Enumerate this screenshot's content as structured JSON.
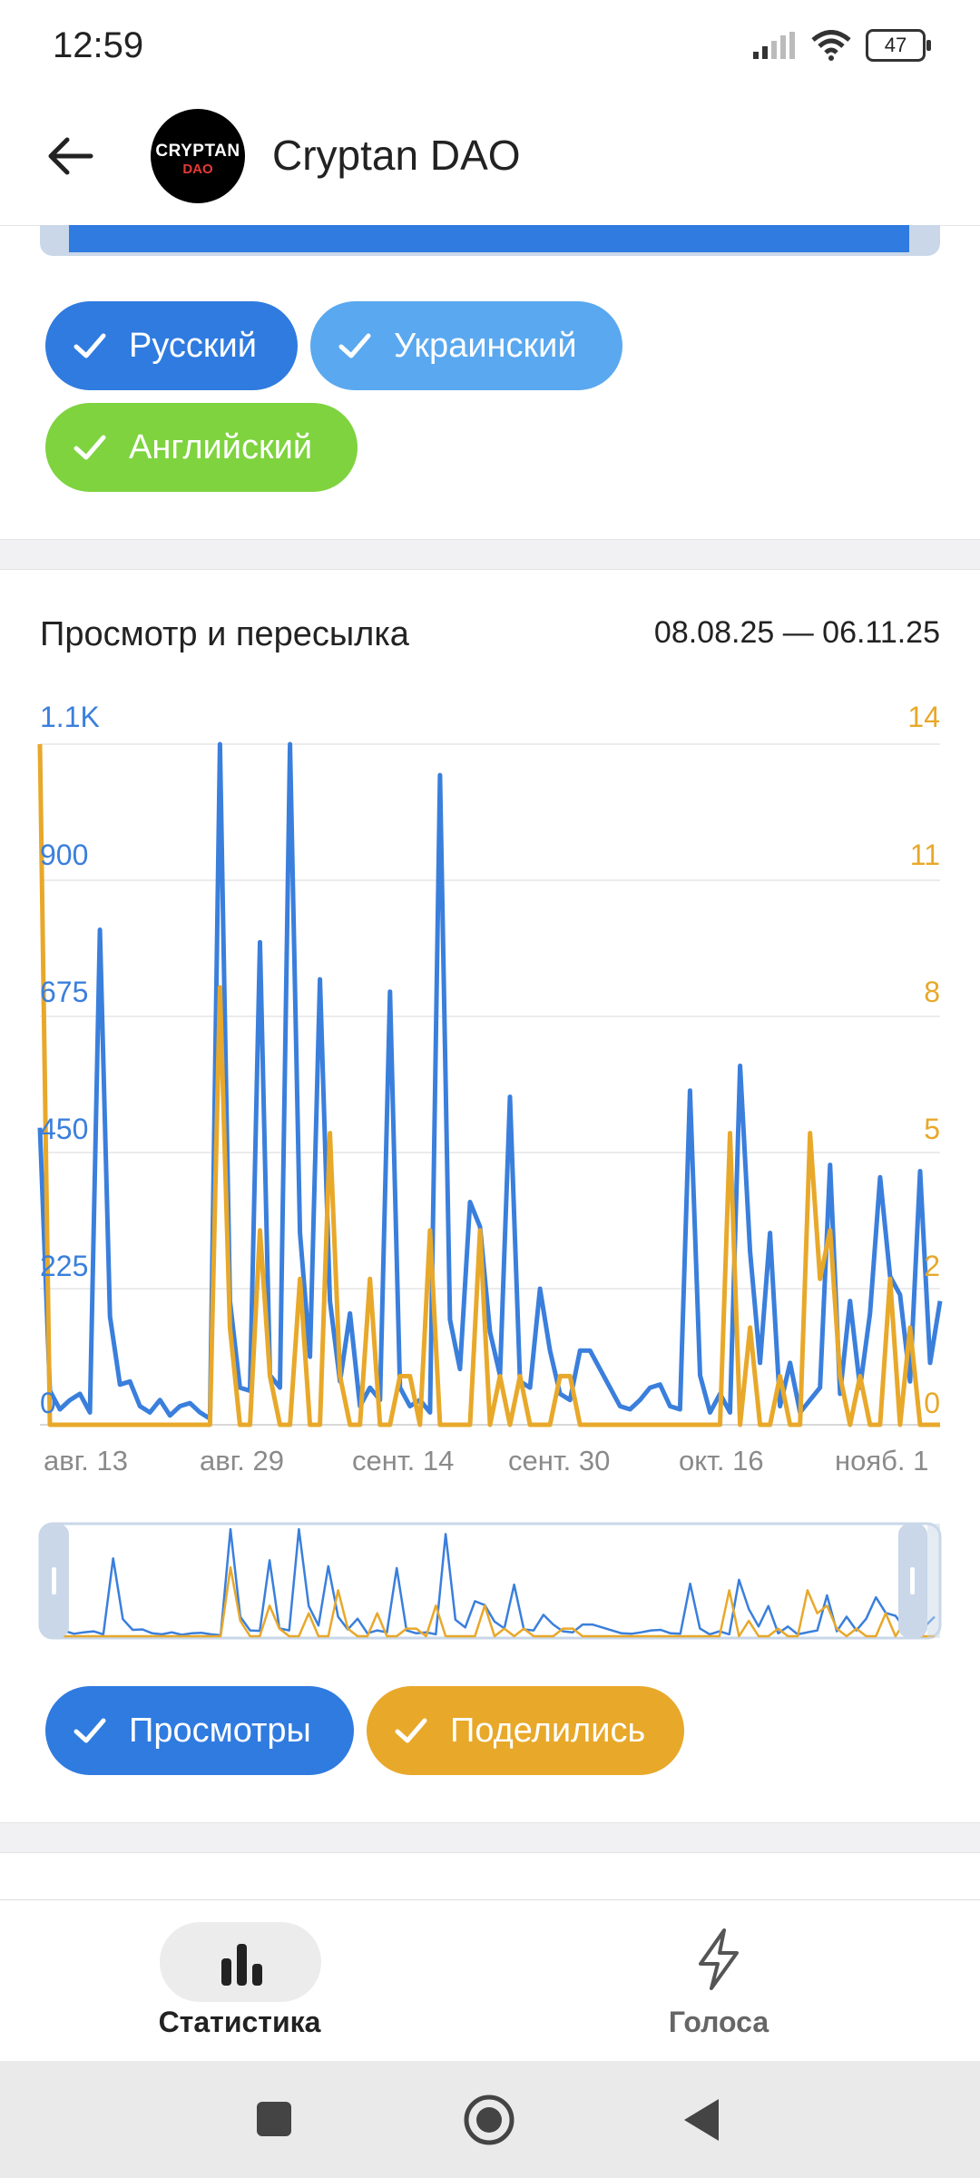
{
  "status": {
    "time": "12:59",
    "battery": "47"
  },
  "appbar": {
    "title": "Cryptan DAO",
    "avatar_line1": "CRYPTAN",
    "avatar_line2": "DAO"
  },
  "languages": {
    "chips": [
      {
        "label": "Русский",
        "color": "#2f7be0"
      },
      {
        "label": "Украинский",
        "color": "#5aa8ef"
      },
      {
        "label": "Английский",
        "color": "#7ed33f"
      }
    ]
  },
  "views_chart": {
    "title": "Просмотр и пересылка",
    "range": "08.08.25 — 06.11.25",
    "left_axis_labels": [
      "1.1K",
      "900",
      "675",
      "450",
      "225",
      "0"
    ],
    "right_axis_labels": [
      "14",
      "11",
      "8",
      "5",
      "2",
      "0"
    ],
    "x_labels": [
      "авг. 13",
      "авг. 29",
      "сент. 14",
      "сент. 30",
      "окт. 16",
      "нояб. 1"
    ],
    "toggle_views": "Просмотры",
    "toggle_shares": "Поделились",
    "colors": {
      "views": "#3a7fdc",
      "shares": "#e8a82a"
    }
  },
  "chart_data": {
    "type": "line",
    "x": [
      "2025-08-08",
      "2025-08-09",
      "2025-08-10",
      "2025-08-11",
      "2025-08-12",
      "2025-08-13",
      "2025-08-14",
      "2025-08-15",
      "2025-08-16",
      "2025-08-17",
      "2025-08-18",
      "2025-08-19",
      "2025-08-20",
      "2025-08-21",
      "2025-08-22",
      "2025-08-23",
      "2025-08-24",
      "2025-08-25",
      "2025-08-26",
      "2025-08-27",
      "2025-08-28",
      "2025-08-29",
      "2025-08-30",
      "2025-08-31",
      "2025-09-01",
      "2025-09-02",
      "2025-09-03",
      "2025-09-04",
      "2025-09-05",
      "2025-09-06",
      "2025-09-07",
      "2025-09-08",
      "2025-09-09",
      "2025-09-10",
      "2025-09-11",
      "2025-09-12",
      "2025-09-13",
      "2025-09-14",
      "2025-09-15",
      "2025-09-16",
      "2025-09-17",
      "2025-09-18",
      "2025-09-19",
      "2025-09-20",
      "2025-09-21",
      "2025-09-22",
      "2025-09-23",
      "2025-09-24",
      "2025-09-25",
      "2025-09-26",
      "2025-09-27",
      "2025-09-28",
      "2025-09-29",
      "2025-09-30",
      "2025-10-01",
      "2025-10-02",
      "2025-10-03",
      "2025-10-04",
      "2025-10-05",
      "2025-10-06",
      "2025-10-07",
      "2025-10-08",
      "2025-10-09",
      "2025-10-10",
      "2025-10-11",
      "2025-10-12",
      "2025-10-13",
      "2025-10-14",
      "2025-10-15",
      "2025-10-16",
      "2025-10-17",
      "2025-10-18",
      "2025-10-19",
      "2025-10-20",
      "2025-10-21",
      "2025-10-22",
      "2025-10-23",
      "2025-10-24",
      "2025-10-25",
      "2025-10-26",
      "2025-10-27",
      "2025-10-28",
      "2025-10-29",
      "2025-10-30",
      "2025-10-31",
      "2025-11-01",
      "2025-11-02",
      "2025-11-03",
      "2025-11-04",
      "2025-11-05",
      "2025-11-06"
    ],
    "series": [
      {
        "name": "Просмотры",
        "axis": "left",
        "values": [
          480,
          55,
          25,
          40,
          50,
          20,
          800,
          175,
          65,
          70,
          30,
          20,
          40,
          15,
          30,
          35,
          20,
          10,
          1120,
          200,
          60,
          55,
          780,
          80,
          60,
          1100,
          310,
          110,
          720,
          200,
          70,
          180,
          30,
          60,
          40,
          700,
          60,
          30,
          40,
          20,
          1050,
          170,
          90,
          360,
          320,
          150,
          80,
          530,
          70,
          60,
          220,
          120,
          50,
          40,
          120,
          120,
          90,
          60,
          30,
          25,
          40,
          60,
          65,
          30,
          25,
          540,
          80,
          20,
          50,
          20,
          580,
          280,
          100,
          310,
          30,
          100,
          20,
          40,
          60,
          420,
          50,
          200,
          60,
          180,
          400,
          240,
          210,
          70,
          410,
          100,
          200
        ],
        "left_axis_range": [
          0,
          1100
        ]
      },
      {
        "name": "Поделились",
        "axis": "right",
        "values": [
          14,
          0,
          0,
          0,
          0,
          0,
          0,
          0,
          0,
          0,
          0,
          0,
          0,
          0,
          0,
          0,
          0,
          0,
          9,
          2,
          0,
          0,
          4,
          1,
          0,
          0,
          3,
          0,
          0,
          6,
          1,
          0,
          0,
          3,
          0,
          0,
          1,
          1,
          0,
          4,
          0,
          0,
          0,
          0,
          4,
          0,
          1,
          0,
          1,
          0,
          0,
          0,
          1,
          1,
          0,
          0,
          0,
          0,
          0,
          0,
          0,
          0,
          0,
          0,
          0,
          0,
          0,
          0,
          0,
          6,
          0,
          2,
          0,
          0,
          1,
          0,
          0,
          6,
          3,
          4,
          1,
          0,
          1,
          0,
          0,
          3,
          0,
          2,
          0,
          0,
          0
        ],
        "right_axis_range": [
          0,
          14
        ]
      }
    ],
    "grid": true
  },
  "bottom_nav": {
    "stats_label": "Статистика",
    "votes_label": "Голоса"
  }
}
